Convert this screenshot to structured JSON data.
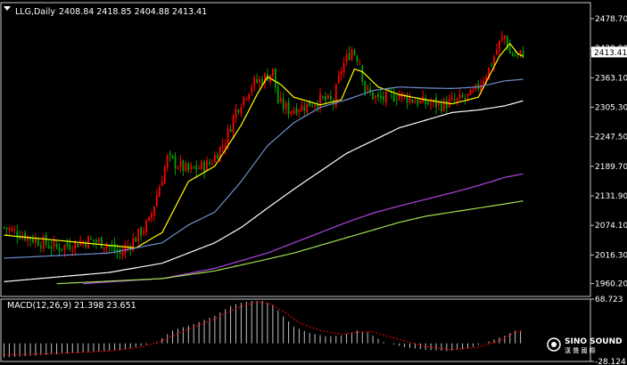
{
  "header": {
    "symbol": "LLG,Daily",
    "ohlc": "2408.84 2418.85 2404.88 2413.41"
  },
  "macd_header": "MACD(12,26,9) 21.398 23.651",
  "logo": {
    "name": "SINO SOUND",
    "subtitle": "漢 聲 國 際"
  },
  "colors": {
    "background": "#000000",
    "frame": "#c8c8c8",
    "bull": "#ff0000",
    "bear": "#00a000",
    "ma_fast": "#ffff00",
    "ma_mid": "#6f8fce",
    "ma_slow": "#ffffff",
    "ma_long": "#b044e0",
    "ma_longest": "#a0e050",
    "macd_hist": "#c0c0c0",
    "macd_signal": "#ff0000"
  },
  "chart_data": {
    "type": "candlestick",
    "title": "LLG,Daily",
    "timeframe": "Daily",
    "ylim": [
      1935,
      2510
    ],
    "y_ticks": [
      2478.7,
      2420.9,
      2363.1,
      2305.3,
      2247.5,
      2189.7,
      2131.9,
      2074.1,
      2016.3,
      1960.2
    ],
    "current_price": 2413.41,
    "close_path": [
      [
        0,
        2070
      ],
      [
        10,
        2050
      ],
      [
        20,
        2030
      ],
      [
        32,
        2045
      ],
      [
        38,
        2040
      ],
      [
        44,
        2018
      ],
      [
        50,
        2050
      ],
      [
        55,
        2080
      ],
      [
        62,
        2205
      ],
      [
        70,
        2180
      ],
      [
        78,
        2195
      ],
      [
        84,
        2240
      ],
      [
        88,
        2300
      ],
      [
        94,
        2350
      ],
      [
        98,
        2360
      ],
      [
        102,
        2375
      ],
      [
        104,
        2315
      ],
      [
        108,
        2300
      ],
      [
        115,
        2310
      ],
      [
        120,
        2320
      ],
      [
        125,
        2315
      ],
      [
        128,
        2380
      ],
      [
        132,
        2420
      ],
      [
        135,
        2395
      ],
      [
        137,
        2340
      ],
      [
        142,
        2320
      ],
      [
        150,
        2330
      ],
      [
        158,
        2315
      ],
      [
        166,
        2310
      ],
      [
        172,
        2318
      ],
      [
        178,
        2330
      ],
      [
        184,
        2380
      ],
      [
        188,
        2430
      ],
      [
        190,
        2445
      ],
      [
        192,
        2410
      ],
      [
        195,
        2405
      ],
      [
        197,
        2412
      ]
    ],
    "moving_averages": [
      {
        "name": "MA fast",
        "color_key": "ma_fast",
        "points": [
          [
            0,
            2055
          ],
          [
            30,
            2040
          ],
          [
            50,
            2030
          ],
          [
            60,
            2060
          ],
          [
            70,
            2160
          ],
          [
            80,
            2190
          ],
          [
            90,
            2270
          ],
          [
            96,
            2330
          ],
          [
            100,
            2365
          ],
          [
            105,
            2350
          ],
          [
            110,
            2325
          ],
          [
            120,
            2310
          ],
          [
            128,
            2320
          ],
          [
            133,
            2380
          ],
          [
            136,
            2375
          ],
          [
            142,
            2345
          ],
          [
            150,
            2330
          ],
          [
            160,
            2320
          ],
          [
            170,
            2312
          ],
          [
            180,
            2325
          ],
          [
            188,
            2405
          ],
          [
            192,
            2430
          ],
          [
            195,
            2410
          ],
          [
            197,
            2405
          ]
        ]
      },
      {
        "name": "MA mid",
        "color_key": "ma_mid",
        "points": [
          [
            0,
            2010
          ],
          [
            40,
            2020
          ],
          [
            60,
            2040
          ],
          [
            70,
            2075
          ],
          [
            80,
            2100
          ],
          [
            90,
            2160
          ],
          [
            100,
            2230
          ],
          [
            110,
            2275
          ],
          [
            120,
            2305
          ],
          [
            130,
            2320
          ],
          [
            140,
            2338
          ],
          [
            150,
            2345
          ],
          [
            160,
            2343
          ],
          [
            170,
            2342
          ],
          [
            180,
            2345
          ],
          [
            190,
            2357
          ],
          [
            197,
            2360
          ]
        ]
      },
      {
        "name": "MA slow",
        "color_key": "ma_slow",
        "points": [
          [
            0,
            1964
          ],
          [
            40,
            1982
          ],
          [
            60,
            2000
          ],
          [
            70,
            2020
          ],
          [
            80,
            2040
          ],
          [
            90,
            2070
          ],
          [
            100,
            2108
          ],
          [
            110,
            2145
          ],
          [
            120,
            2180
          ],
          [
            130,
            2215
          ],
          [
            140,
            2240
          ],
          [
            150,
            2265
          ],
          [
            160,
            2280
          ],
          [
            170,
            2295
          ],
          [
            180,
            2300
          ],
          [
            190,
            2308
          ],
          [
            197,
            2318
          ]
        ]
      },
      {
        "name": "MA long",
        "color_key": "ma_long",
        "points": [
          [
            30,
            1960
          ],
          [
            60,
            1970
          ],
          [
            80,
            1990
          ],
          [
            100,
            2020
          ],
          [
            110,
            2040
          ],
          [
            120,
            2060
          ],
          [
            130,
            2080
          ],
          [
            140,
            2098
          ],
          [
            150,
            2112
          ],
          [
            160,
            2125
          ],
          [
            170,
            2138
          ],
          [
            180,
            2152
          ],
          [
            190,
            2168
          ],
          [
            197,
            2175
          ]
        ]
      },
      {
        "name": "MA longest",
        "color_key": "ma_longest",
        "points": [
          [
            20,
            1960
          ],
          [
            60,
            1970
          ],
          [
            80,
            1985
          ],
          [
            100,
            2008
          ],
          [
            110,
            2020
          ],
          [
            120,
            2035
          ],
          [
            130,
            2050
          ],
          [
            140,
            2065
          ],
          [
            150,
            2080
          ],
          [
            160,
            2092
          ],
          [
            170,
            2100
          ],
          [
            180,
            2108
          ],
          [
            190,
            2116
          ],
          [
            197,
            2122
          ]
        ]
      }
    ],
    "macd": {
      "label": "MACD(12,26,9)",
      "main": 21.398,
      "signal": 23.651,
      "ylim": [
        -28.124,
        68.723
      ],
      "y_ticks": [
        68.723,
        -28.124
      ],
      "histogram_path": [
        [
          0,
          -22
        ],
        [
          15,
          -18
        ],
        [
          30,
          -14
        ],
        [
          45,
          -10
        ],
        [
          52,
          -4
        ],
        [
          58,
          2
        ],
        [
          64,
          20
        ],
        [
          72,
          30
        ],
        [
          80,
          43
        ],
        [
          86,
          58
        ],
        [
          90,
          63
        ],
        [
          94,
          66
        ],
        [
          98,
          66
        ],
        [
          102,
          60
        ],
        [
          106,
          42
        ],
        [
          110,
          26
        ],
        [
          116,
          16
        ],
        [
          122,
          11
        ],
        [
          128,
          12
        ],
        [
          134,
          20
        ],
        [
          138,
          17
        ],
        [
          144,
          2
        ],
        [
          152,
          -6
        ],
        [
          160,
          -10
        ],
        [
          168,
          -12
        ],
        [
          176,
          -8
        ],
        [
          184,
          3
        ],
        [
          190,
          12
        ],
        [
          194,
          20
        ],
        [
          197,
          18
        ]
      ],
      "signal_path": [
        [
          0,
          -18
        ],
        [
          20,
          -16
        ],
        [
          40,
          -12
        ],
        [
          52,
          -6
        ],
        [
          60,
          4
        ],
        [
          70,
          22
        ],
        [
          80,
          38
        ],
        [
          88,
          54
        ],
        [
          95,
          64
        ],
        [
          100,
          63
        ],
        [
          106,
          50
        ],
        [
          112,
          32
        ],
        [
          120,
          20
        ],
        [
          128,
          14
        ],
        [
          136,
          18
        ],
        [
          140,
          18
        ],
        [
          150,
          6
        ],
        [
          160,
          -5
        ],
        [
          170,
          -10
        ],
        [
          180,
          -6
        ],
        [
          188,
          4
        ],
        [
          194,
          17
        ],
        [
          197,
          20
        ]
      ]
    }
  }
}
